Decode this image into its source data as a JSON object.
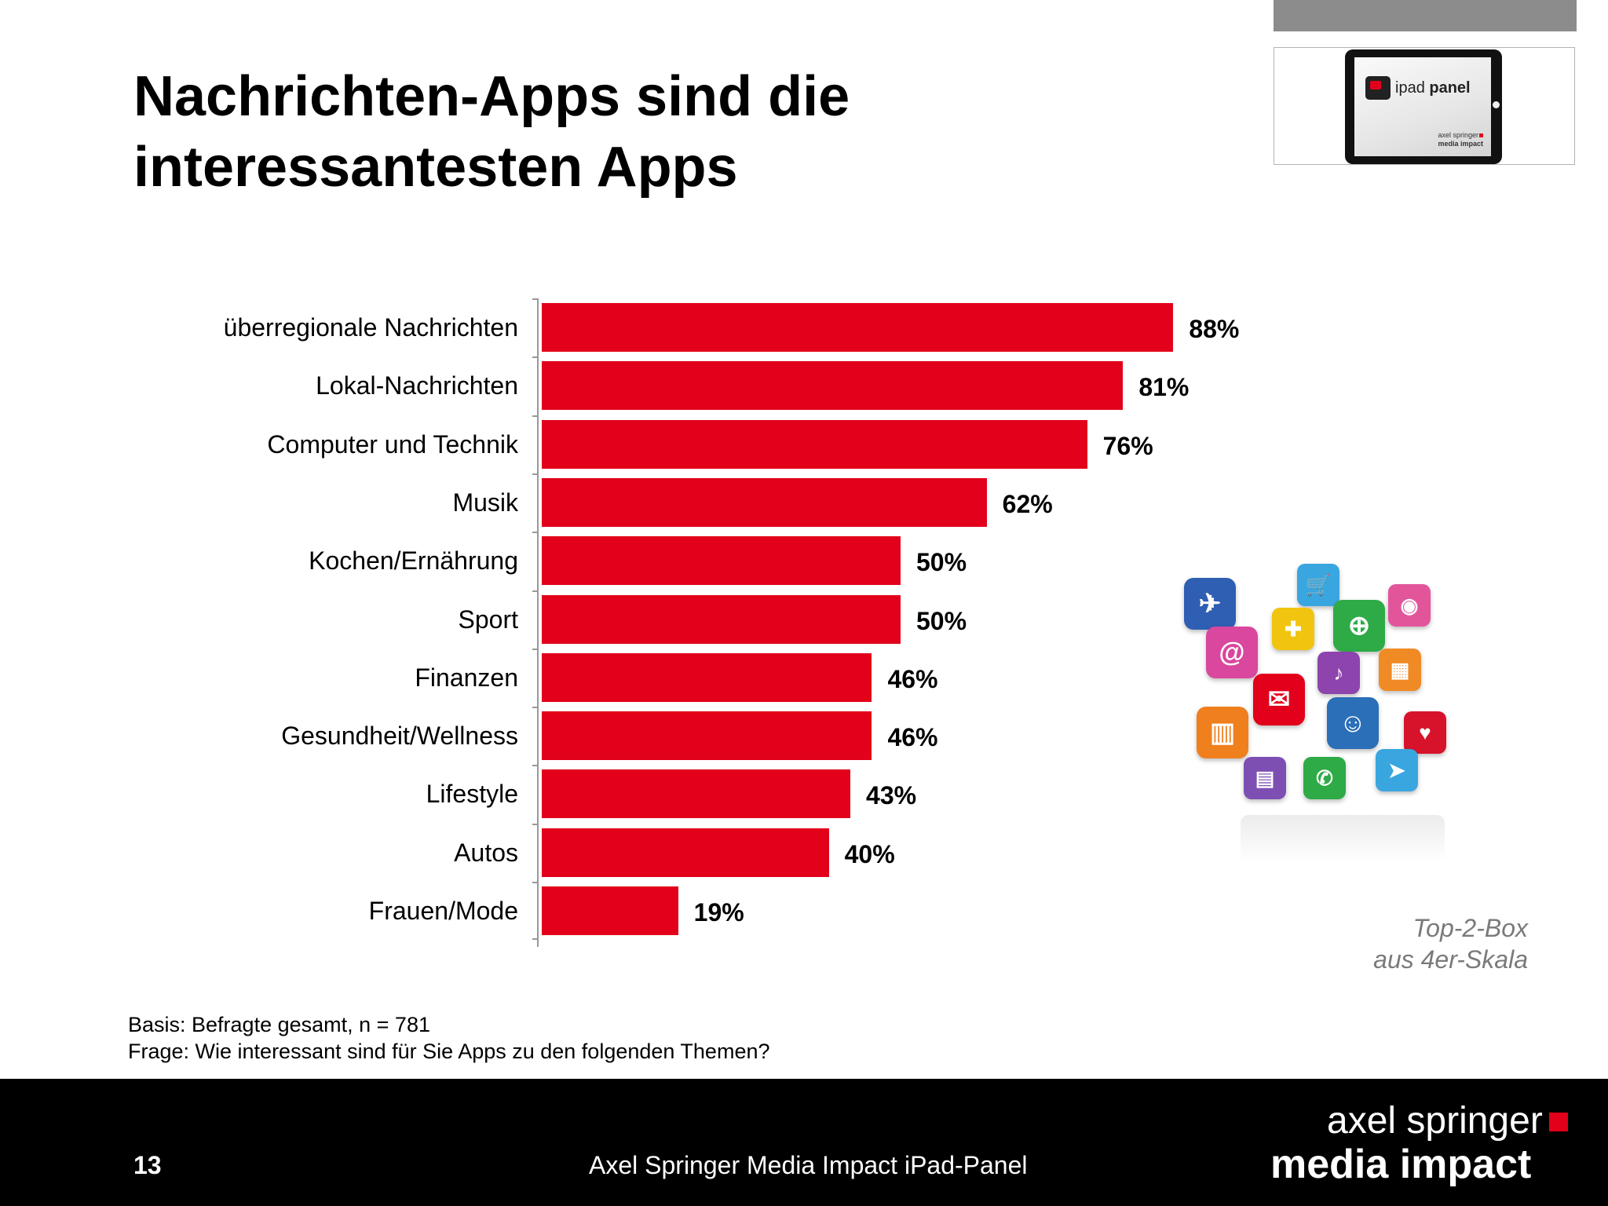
{
  "slide": {
    "title": "Nachrichten-Apps sind die interessantesten Apps",
    "note_line1": "Top-2-Box",
    "note_line2": "aus 4er-Skala",
    "basis": "Basis: Befragte gesamt, n = 781",
    "question": "Frage: Wie interessant sind für Sie Apps zu den folgenden Themen?"
  },
  "logo_panel": {
    "label_prefix": "ipad",
    "label_suffix": "panel",
    "sub_line1": "axel springer",
    "sub_line2": "media impact"
  },
  "footer": {
    "page_number": "13",
    "center_text": "Axel Springer Media Impact iPad-Panel",
    "brand_line1": "axel springer",
    "brand_line2": "media impact"
  },
  "colors": {
    "bar": "#e2001a",
    "footer_bg": "#000000",
    "top_bar": "#8c8c8c"
  },
  "icons": [
    "airplane-icon",
    "shopping-cart-icon",
    "camera-icon",
    "at-sign-icon",
    "gamepad-icon",
    "globe-icon",
    "music-icon",
    "film-icon",
    "phone-mail-icon",
    "people-icon",
    "book-icon",
    "heart-icon",
    "news-icon",
    "phone-call-icon",
    "mail-icon"
  ],
  "chart_data": {
    "type": "bar",
    "orientation": "horizontal",
    "categories": [
      "überregionale Nachrichten",
      "Lokal-Nachrichten",
      "Computer und Technik",
      "Musik",
      "Kochen/Ernährung",
      "Sport",
      "Finanzen",
      "Gesundheit/Wellness",
      "Lifestyle",
      "Autos",
      "Frauen/Mode"
    ],
    "values": [
      88,
      81,
      76,
      62,
      50,
      50,
      46,
      46,
      43,
      40,
      19
    ],
    "value_labels": [
      "88%",
      "81%",
      "76%",
      "62%",
      "50%",
      "50%",
      "46%",
      "46%",
      "43%",
      "40%",
      "19%"
    ],
    "unit": "%",
    "xlim": [
      0,
      100
    ],
    "grid": false,
    "legend": "none"
  }
}
